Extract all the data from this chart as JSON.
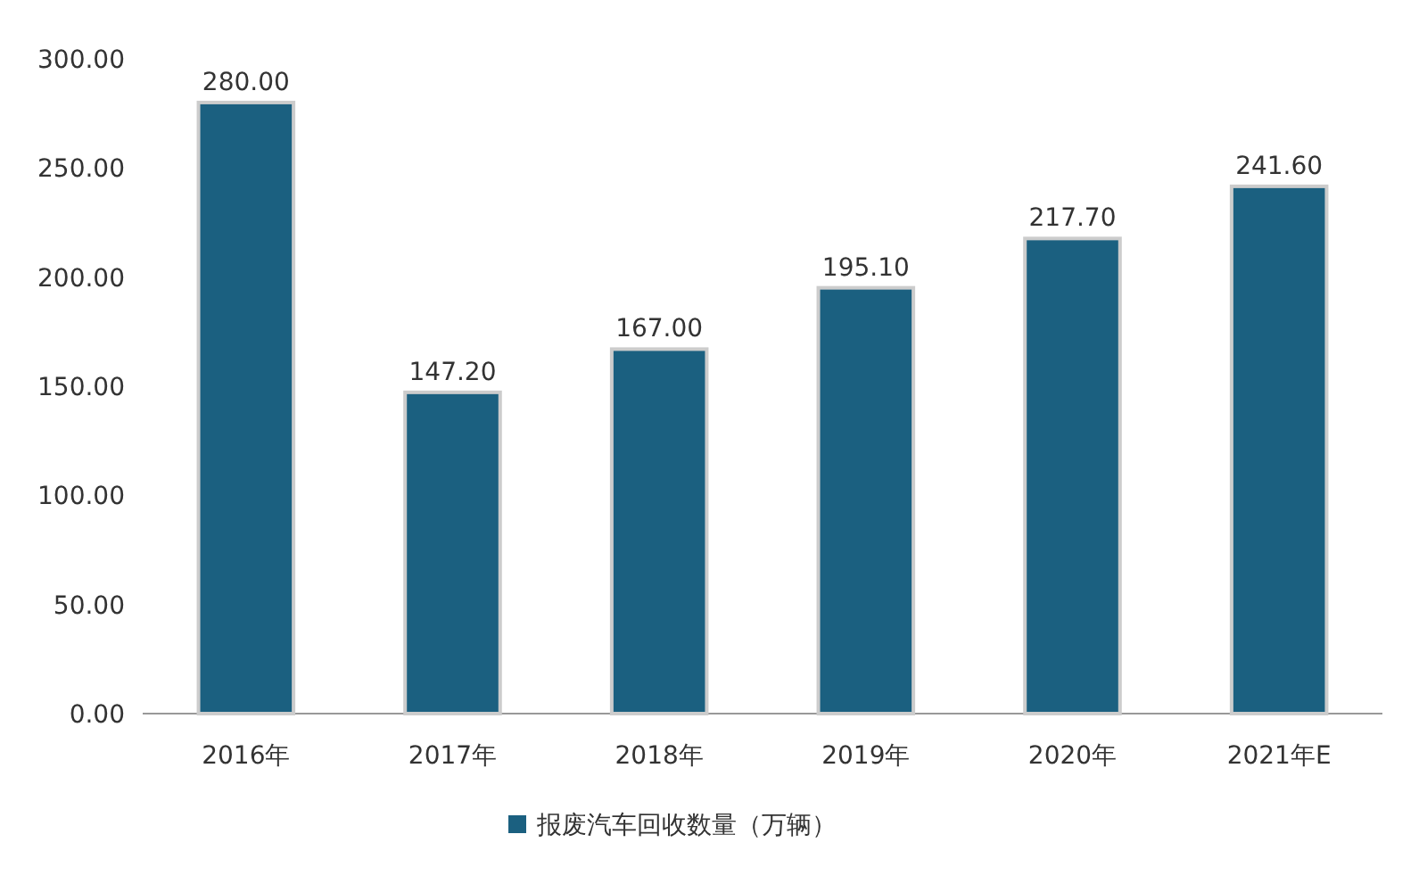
{
  "chart_data": {
    "type": "bar",
    "categories": [
      "2016年",
      "2017年",
      "2018年",
      "2019年",
      "2020年",
      "2021年E"
    ],
    "series": [
      {
        "name": "报废汽车回收数量（万辆）",
        "color": "#1b6080",
        "values": [
          280,
          147.2,
          167,
          195.1,
          217.7,
          241.6
        ],
        "value_labels": [
          "280.00",
          "147.20",
          "167.00",
          "195.10",
          "217.70",
          "241.60"
        ]
      }
    ],
    "ylim": [
      0,
      300
    ],
    "yticks": [
      {
        "value": 0,
        "label": "0.00"
      },
      {
        "value": 50,
        "label": "50.00"
      },
      {
        "value": 100,
        "label": "100.00"
      },
      {
        "value": 150,
        "label": "150.00"
      },
      {
        "value": 200,
        "label": "200.00"
      },
      {
        "value": 250,
        "label": "250.00"
      },
      {
        "value": 300,
        "label": "300.00"
      }
    ],
    "legend": "bottom"
  }
}
